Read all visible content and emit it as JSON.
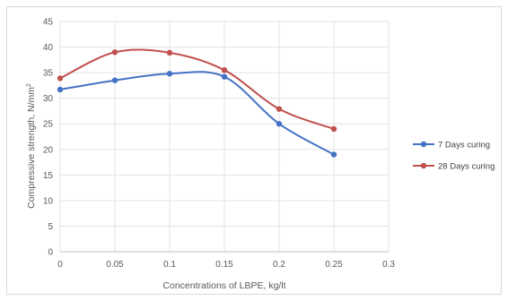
{
  "chart_data": {
    "type": "line",
    "xlabel": "Concentrations of LBPE, kg/lt",
    "ylabel_main": "Compressive strength, N/mm",
    "ylabel_sup": "2",
    "x_ticks": [
      0,
      0.05,
      0.1,
      0.15,
      0.2,
      0.25,
      0.3
    ],
    "y_ticks": [
      0,
      5,
      10,
      15,
      20,
      25,
      30,
      35,
      40,
      45
    ],
    "xlim": [
      0,
      0.3
    ],
    "ylim": [
      0,
      45
    ],
    "grid": "vertical-and-horizontal",
    "legend_placement": "right",
    "x": [
      0,
      0.05,
      0.1,
      0.15,
      0.2,
      0.25
    ],
    "series": [
      {
        "name": "7 Days curing",
        "color": "#4472c4",
        "values": [
          31.7,
          33.5,
          34.8,
          34.2,
          25.0,
          19.0
        ]
      },
      {
        "name": "28 Days curing",
        "color": "#c0504d",
        "values": [
          33.9,
          39.0,
          38.9,
          35.5,
          27.9,
          24.0
        ]
      }
    ]
  }
}
